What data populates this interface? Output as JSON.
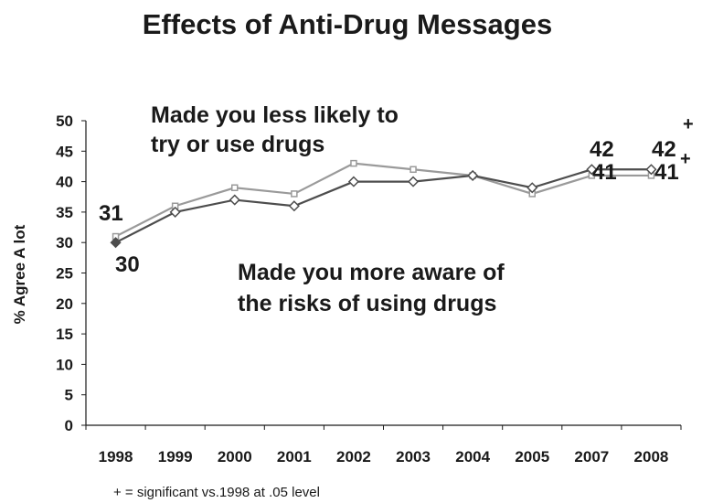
{
  "chart_data": {
    "type": "line",
    "title": "Effects of Anti-Drug Messages",
    "ylabel": "% Agree A lot",
    "xlabel": "",
    "categories": [
      "1998",
      "1999",
      "2000",
      "2001",
      "2002",
      "2003",
      "2004",
      "2005",
      "2007",
      "2008"
    ],
    "ylim": [
      0,
      50
    ],
    "yticks": [
      0,
      5,
      10,
      15,
      20,
      25,
      30,
      35,
      40,
      45,
      50
    ],
    "grid": false,
    "series": [
      {
        "name": "Made you more aware of the risks of using drugs",
        "values": [
          31,
          36,
          39,
          38,
          43,
          42,
          41,
          38,
          41,
          41
        ],
        "color": "#9a9a9a",
        "marker": "square"
      },
      {
        "name": "Made you less likely to try or use drugs",
        "values": [
          30,
          35,
          37,
          36,
          40,
          40,
          41,
          39,
          42,
          42
        ],
        "color": "#4d4d4d",
        "marker": "diamond"
      }
    ],
    "annotations": {
      "less_likely_line1": "Made you less likely to",
      "less_likely_line2": "try or use drugs",
      "more_aware_line1": "Made you more aware of",
      "more_aware_line2": "the risks of using drugs"
    },
    "data_labels": {
      "label_1998_aware": "31",
      "label_1998_less": "30",
      "label_2007_less": "42",
      "label_2008_less": "42",
      "label_2007_aware": "41",
      "label_2008_aware": "41",
      "plus_2008_less": "+",
      "plus_2008_aware": "+"
    },
    "footnote": "+ = significant vs.1998 at .05 level"
  }
}
